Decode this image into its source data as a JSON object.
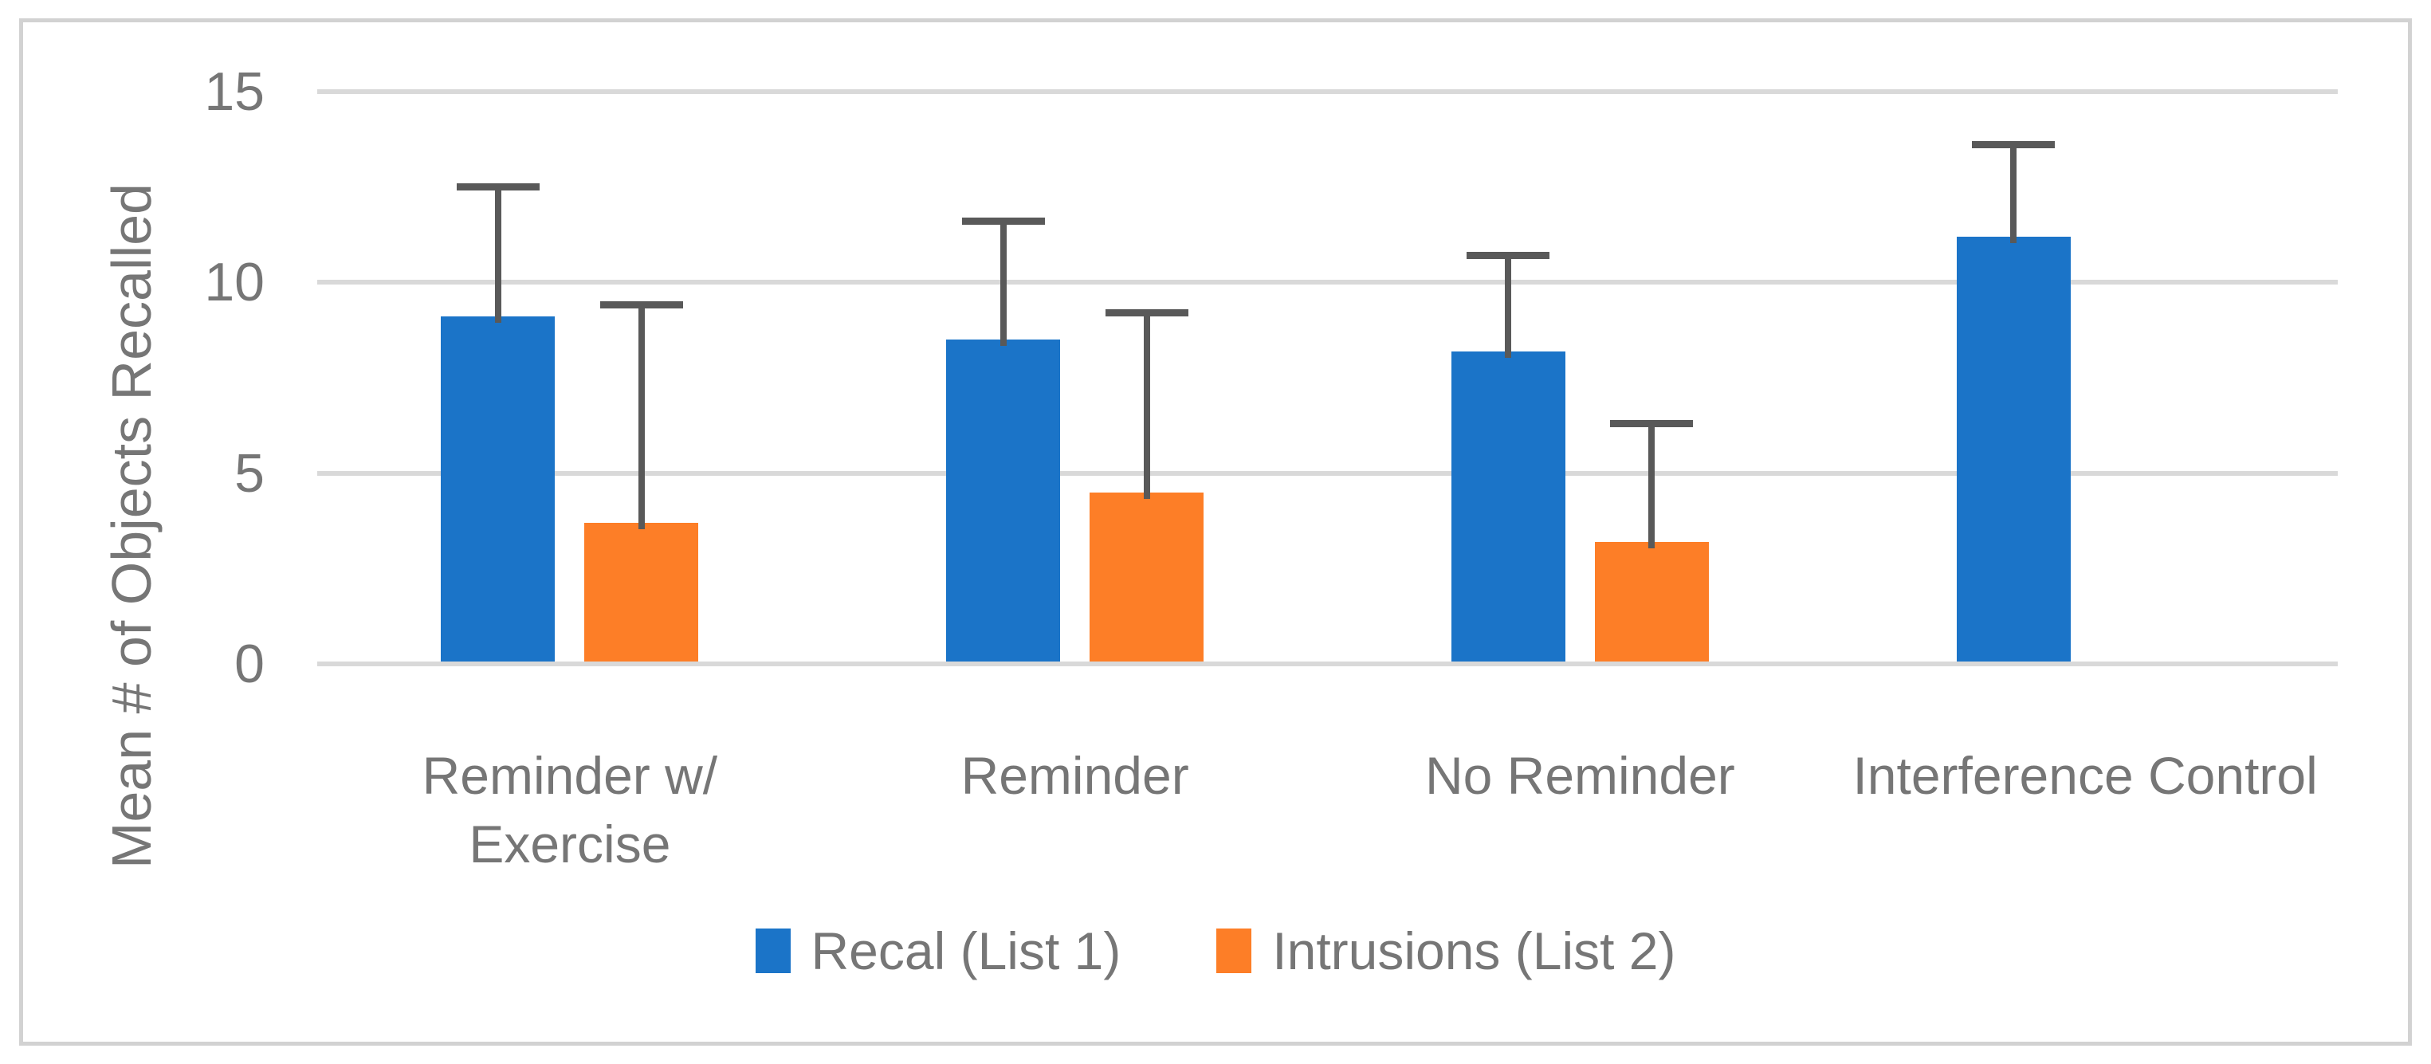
{
  "figure": {
    "background": "#ffffff",
    "frame_color": "#d2d2d2"
  },
  "chart_data": {
    "type": "bar",
    "title": "",
    "xlabel": "",
    "ylabel": "Mean # of Objects Recalled",
    "ylim": [
      0,
      15
    ],
    "yticks": [
      0,
      5,
      10,
      15
    ],
    "grid": true,
    "gridline_color": "#d9d9d9",
    "axis_line_color": "#d9d9d9",
    "text_color": "#767676",
    "error_bar_color": "#595959",
    "legend_position": "bottom-center",
    "categories": [
      "Reminder w/\nExercise",
      "Reminder",
      "No Reminder",
      "Interference Control"
    ],
    "series": [
      {
        "name": "Recal (List 1)",
        "color": "#1b74c8",
        "values": [
          9.1,
          8.5,
          8.2,
          11.2
        ],
        "error_tops": [
          12.6,
          11.7,
          10.8,
          13.7
        ]
      },
      {
        "name": "Intrusions (List 2)",
        "color": "#fd7e27",
        "values": [
          3.7,
          4.5,
          3.2,
          null
        ],
        "error_tops": [
          9.5,
          9.3,
          6.4,
          null
        ]
      }
    ]
  }
}
